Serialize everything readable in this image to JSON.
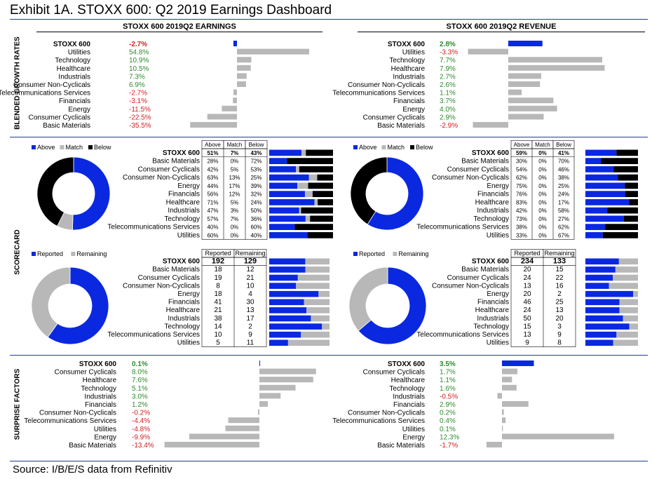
{
  "title": "Exhibit 1A.  STOXX 600: Q2 2019 Earnings Dashboard",
  "source": "Source: I/B/E/S data from Refinitiv",
  "colors": {
    "blue": "#0a28e0",
    "gray": "#b8b8b8",
    "black": "#000000",
    "green": "#2e8b2e",
    "red": "#d02020",
    "rule": "#1f3f8f"
  },
  "headers": {
    "earnings": "STOXX 600 2019Q2 EARNINGS",
    "revenue": "STOXX 600 2019Q2 REVENUE"
  },
  "section_labels": {
    "growth": "BLENDED GROWTH RATES",
    "scorecard": "SCORECARD",
    "surprise": "SURPRISE FACTORS"
  },
  "chart_data": [
    {
      "id": "earnings_growth",
      "type": "bar",
      "orientation": "horizontal",
      "categories": [
        "STOXX 600",
        "Utilities",
        "Technology",
        "Healthcare",
        "Industrials",
        "Consumer Non-Cyclicals",
        "Telecommunications Services",
        "Financials",
        "Energy",
        "Consumer Cyclicals",
        "Basic Materials"
      ],
      "labels": [
        "-2.7%",
        "54.8%",
        "10.9%",
        "10.5%",
        "7.3%",
        "6.9%",
        "-2.7%",
        "-3.1%",
        "-11.5%",
        "-22.5%",
        "-35.5%"
      ],
      "values": [
        -2.7,
        54.8,
        10.9,
        10.5,
        7.3,
        6.9,
        -2.7,
        -3.1,
        -11.5,
        -22.5,
        -35.5
      ]
    },
    {
      "id": "revenue_growth",
      "type": "bar",
      "orientation": "horizontal",
      "categories": [
        "STOXX 600",
        "Utilities",
        "Technology",
        "Healthcare",
        "Industrials",
        "Consumer Non-Cyclicals",
        "Telecommunications Services",
        "Financials",
        "Energy",
        "Consumer Cyclicals",
        "Basic Materials"
      ],
      "labels": [
        "2.8%",
        "-3.3%",
        "7.7%",
        "7.9%",
        "2.7%",
        "2.6%",
        "1.1%",
        "3.7%",
        "4.0%",
        "2.9%",
        "-2.9%"
      ],
      "values": [
        2.8,
        -3.3,
        7.7,
        7.9,
        2.7,
        2.6,
        1.1,
        3.7,
        4.0,
        2.9,
        -2.9
      ]
    },
    {
      "id": "earnings_scorecard",
      "type": "table",
      "legend": [
        "Above",
        "Match",
        "Below"
      ],
      "columns": [
        "Above",
        "Match",
        "Below"
      ],
      "categories": [
        "STOXX 600",
        "Basic Materials",
        "Consumer Cyclicals",
        "Consumer Non-Cyclicals",
        "Energy",
        "Financials",
        "Healthcare",
        "Industrials",
        "Technology",
        "Telecommunications Services",
        "Utilities"
      ],
      "rows": [
        [
          "51%",
          "7%",
          "43%"
        ],
        [
          "28%",
          "0%",
          "72%"
        ],
        [
          "42%",
          "5%",
          "53%"
        ],
        [
          "63%",
          "13%",
          "25%"
        ],
        [
          "44%",
          "17%",
          "39%"
        ],
        [
          "56%",
          "12%",
          "32%"
        ],
        [
          "71%",
          "5%",
          "24%"
        ],
        [
          "47%",
          "3%",
          "50%"
        ],
        [
          "57%",
          "7%",
          "36%"
        ],
        [
          "40%",
          "0%",
          "60%"
        ],
        [
          "60%",
          "0%",
          "40%"
        ]
      ],
      "values": [
        [
          51,
          7,
          43
        ],
        [
          28,
          0,
          72
        ],
        [
          42,
          5,
          53
        ],
        [
          63,
          13,
          25
        ],
        [
          44,
          17,
          39
        ],
        [
          56,
          12,
          32
        ],
        [
          71,
          5,
          24
        ],
        [
          47,
          3,
          50
        ],
        [
          57,
          7,
          36
        ],
        [
          40,
          0,
          60
        ],
        [
          60,
          0,
          40
        ]
      ]
    },
    {
      "id": "revenue_scorecard",
      "type": "table",
      "legend": [
        "Above",
        "Match",
        "Below"
      ],
      "columns": [
        "Above",
        "Match",
        "Below"
      ],
      "categories": [
        "STOXX 600",
        "Basic Materials",
        "Consumer Cyclicals",
        "Consumer Non-Cyclicals",
        "Energy",
        "Financials",
        "Healthcare",
        "Industrials",
        "Technology",
        "Telecommunications Services",
        "Utilities"
      ],
      "rows": [
        [
          "59%",
          "0%",
          "41%"
        ],
        [
          "30%",
          "0%",
          "70%"
        ],
        [
          "54%",
          "0%",
          "46%"
        ],
        [
          "62%",
          "0%",
          "38%"
        ],
        [
          "75%",
          "0%",
          "25%"
        ],
        [
          "76%",
          "0%",
          "24%"
        ],
        [
          "83%",
          "0%",
          "17%"
        ],
        [
          "42%",
          "0%",
          "58%"
        ],
        [
          "73%",
          "0%",
          "27%"
        ],
        [
          "38%",
          "0%",
          "62%"
        ],
        [
          "33%",
          "0%",
          "67%"
        ]
      ],
      "values": [
        [
          59,
          0,
          41
        ],
        [
          30,
          0,
          70
        ],
        [
          54,
          0,
          46
        ],
        [
          62,
          0,
          38
        ],
        [
          75,
          0,
          25
        ],
        [
          76,
          0,
          24
        ],
        [
          83,
          0,
          17
        ],
        [
          42,
          0,
          58
        ],
        [
          73,
          0,
          27
        ],
        [
          38,
          0,
          62
        ],
        [
          33,
          0,
          67
        ]
      ]
    },
    {
      "id": "earnings_reported",
      "type": "table",
      "legend": [
        "Reported",
        "Remaining"
      ],
      "columns": [
        "Reported",
        "Remaining"
      ],
      "categories": [
        "STOXX 600",
        "Basic Materials",
        "Consumer Cyclicals",
        "Consumer Non-Cyclicals",
        "Energy",
        "Financials",
        "Healthcare",
        "Industrials",
        "Technology",
        "Telecommunications Services",
        "Utilities"
      ],
      "rows": [
        [
          "192",
          "129"
        ],
        [
          "18",
          "12"
        ],
        [
          "19",
          "21"
        ],
        [
          "8",
          "10"
        ],
        [
          "18",
          "4"
        ],
        [
          "41",
          "30"
        ],
        [
          "21",
          "13"
        ],
        [
          "38",
          "17"
        ],
        [
          "14",
          "2"
        ],
        [
          "10",
          "9"
        ],
        [
          "5",
          "11"
        ]
      ],
      "values": [
        [
          192,
          129
        ],
        [
          18,
          12
        ],
        [
          19,
          21
        ],
        [
          8,
          10
        ],
        [
          18,
          4
        ],
        [
          41,
          30
        ],
        [
          21,
          13
        ],
        [
          38,
          17
        ],
        [
          14,
          2
        ],
        [
          10,
          9
        ],
        [
          5,
          11
        ]
      ]
    },
    {
      "id": "revenue_reported",
      "type": "table",
      "legend": [
        "Reported",
        "Remaining"
      ],
      "columns": [
        "Reported",
        "Remaining"
      ],
      "categories": [
        "STOXX 600",
        "Basic Materials",
        "Consumer Cyclicals",
        "Consumer Non-Cyclicals",
        "Energy",
        "Financials",
        "Healthcare",
        "Industrials",
        "Technology",
        "Telecommunications Services",
        "Utilities"
      ],
      "rows": [
        [
          "234",
          "133"
        ],
        [
          "20",
          "15"
        ],
        [
          "24",
          "22"
        ],
        [
          "13",
          "16"
        ],
        [
          "20",
          "2"
        ],
        [
          "46",
          "25"
        ],
        [
          "24",
          "13"
        ],
        [
          "50",
          "20"
        ],
        [
          "15",
          "3"
        ],
        [
          "13",
          "9"
        ],
        [
          "9",
          "8"
        ]
      ],
      "values": [
        [
          234,
          133
        ],
        [
          20,
          15
        ],
        [
          24,
          22
        ],
        [
          13,
          16
        ],
        [
          20,
          2
        ],
        [
          46,
          25
        ],
        [
          24,
          13
        ],
        [
          50,
          20
        ],
        [
          15,
          3
        ],
        [
          13,
          9
        ],
        [
          9,
          8
        ]
      ]
    },
    {
      "id": "earnings_surprise",
      "type": "bar",
      "orientation": "horizontal",
      "categories": [
        "STOXX 600",
        "Consumer Cyclicals",
        "Healthcare",
        "Technology",
        "Industrials",
        "Financials",
        "Consumer Non-Cyclicals",
        "Telecommunications Services",
        "Utilities",
        "Energy",
        "Basic Materials"
      ],
      "labels": [
        "0.1%",
        "8.0%",
        "7.6%",
        "5.1%",
        "3.0%",
        "1.2%",
        "-0.2%",
        "-4.4%",
        "-4.8%",
        "-9.9%",
        "-13.4%"
      ],
      "values": [
        0.1,
        8.0,
        7.6,
        5.1,
        3.0,
        1.2,
        -0.2,
        -4.4,
        -4.8,
        -9.9,
        -13.4
      ]
    },
    {
      "id": "revenue_surprise",
      "type": "bar",
      "orientation": "horizontal",
      "categories": [
        "STOXX 600",
        "Consumer Cyclicals",
        "Healthcare",
        "Technology",
        "Industrials",
        "Financials",
        "Consumer Non-Cyclicals",
        "Telecommunications Services",
        "Utilities",
        "Energy",
        "Basic Materials"
      ],
      "labels": [
        "3.5%",
        "1.7%",
        "1.1%",
        "1.6%",
        "-0.5%",
        "2.9%",
        "0.2%",
        "0.4%",
        "0.1%",
        "12.3%",
        "-1.7%"
      ],
      "values": [
        3.5,
        1.7,
        1.1,
        1.6,
        -0.5,
        2.9,
        0.2,
        0.4,
        0.1,
        12.3,
        -1.7
      ]
    }
  ]
}
